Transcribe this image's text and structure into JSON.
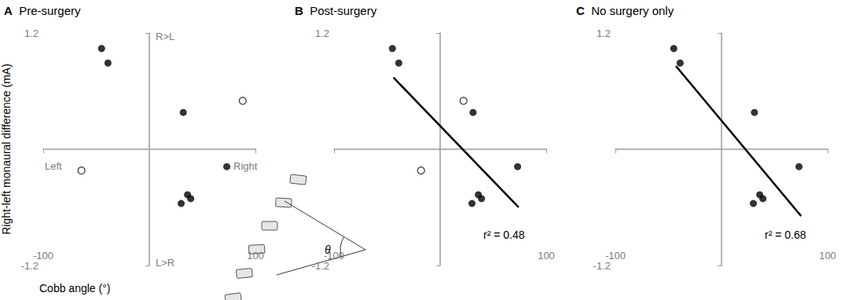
{
  "chart_data": [
    {
      "type": "scatter",
      "panel": "A",
      "title": "Pre-surgery",
      "xlabel": "Cobb angle (°)",
      "ylabel": "Right-left monaural difference (mA)",
      "annotations": [
        "R>L",
        "L>R",
        "Left",
        "Right"
      ],
      "inset_label": "θ",
      "xlim": [
        -100,
        100
      ],
      "ylim": [
        -1.2,
        1.2
      ],
      "xticks": [
        -100,
        100
      ],
      "yticks": [
        -1.2,
        1.2
      ],
      "grid": false,
      "series": [
        {
          "type": "scatter",
          "marker": "filled",
          "color": "#000000",
          "x": [
            -45,
            -39,
            32,
            73,
            36,
            39,
            30
          ],
          "values": [
            1.04,
            0.89,
            0.38,
            -0.18,
            -0.47,
            -0.51,
            -0.56
          ]
        },
        {
          "type": "scatter",
          "marker": "open",
          "color": "#000000",
          "x": [
            88,
            -64
          ],
          "values": [
            0.5,
            -0.22
          ]
        }
      ]
    },
    {
      "type": "scatter",
      "panel": "B",
      "title": "Post-surgery",
      "annotation": "r² = 0.48",
      "xlim": [
        -100,
        100
      ],
      "ylim": [
        -1.2,
        1.2
      ],
      "xticks": [
        -100,
        100
      ],
      "yticks": [
        -1.2,
        1.2
      ],
      "grid": false,
      "series": [
        {
          "type": "scatter",
          "marker": "filled",
          "color": "#000000",
          "x": [
            -45,
            -39,
            31,
            73,
            36,
            39,
            30
          ],
          "values": [
            1.04,
            0.89,
            0.38,
            -0.18,
            -0.47,
            -0.51,
            -0.56
          ]
        },
        {
          "type": "scatter",
          "marker": "open",
          "color": "#000000",
          "x": [
            22,
            -18
          ],
          "values": [
            0.5,
            -0.22
          ]
        },
        {
          "type": "line",
          "line_style": "solid",
          "color": "#000000",
          "x": [
            -44,
            74
          ],
          "values": [
            0.74,
            -0.6
          ]
        }
      ]
    },
    {
      "type": "scatter",
      "panel": "C",
      "title": "No surgery only",
      "annotation": "r² = 0.68",
      "xlim": [
        -100,
        100
      ],
      "ylim": [
        -1.2,
        1.2
      ],
      "xticks": [
        -100,
        100
      ],
      "yticks": [
        -1.2,
        1.2
      ],
      "grid": false,
      "series": [
        {
          "type": "scatter",
          "marker": "filled",
          "color": "#000000",
          "x": [
            -45,
            -39,
            31,
            73,
            36,
            39,
            30
          ],
          "values": [
            1.04,
            0.89,
            0.38,
            -0.18,
            -0.47,
            -0.51,
            -0.56
          ]
        },
        {
          "type": "line",
          "line_style": "solid",
          "color": "#000000",
          "x": [
            -43,
            75
          ],
          "values": [
            0.86,
            -0.69
          ]
        }
      ]
    }
  ]
}
